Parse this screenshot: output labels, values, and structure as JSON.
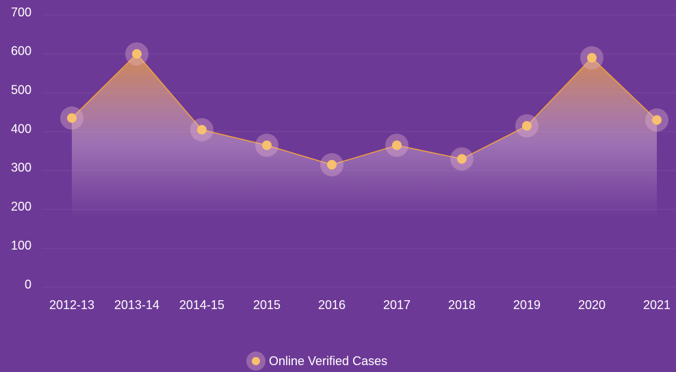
{
  "chart_data": {
    "type": "area",
    "categories": [
      "2012-13",
      "2013-14",
      "2014-15",
      "2015",
      "2016",
      "2017",
      "2018",
      "2019",
      "2020",
      "2021"
    ],
    "series": [
      {
        "name": "Online Verified Cases",
        "color": "#f2a23c",
        "values": [
          435,
          600,
          405,
          365,
          315,
          365,
          330,
          415,
          590,
          430
        ]
      }
    ],
    "ylim": [
      0,
      700
    ],
    "yticks": [
      0,
      100,
      200,
      300,
      400,
      500,
      600,
      700
    ],
    "grid": true,
    "legend": "bottom"
  }
}
